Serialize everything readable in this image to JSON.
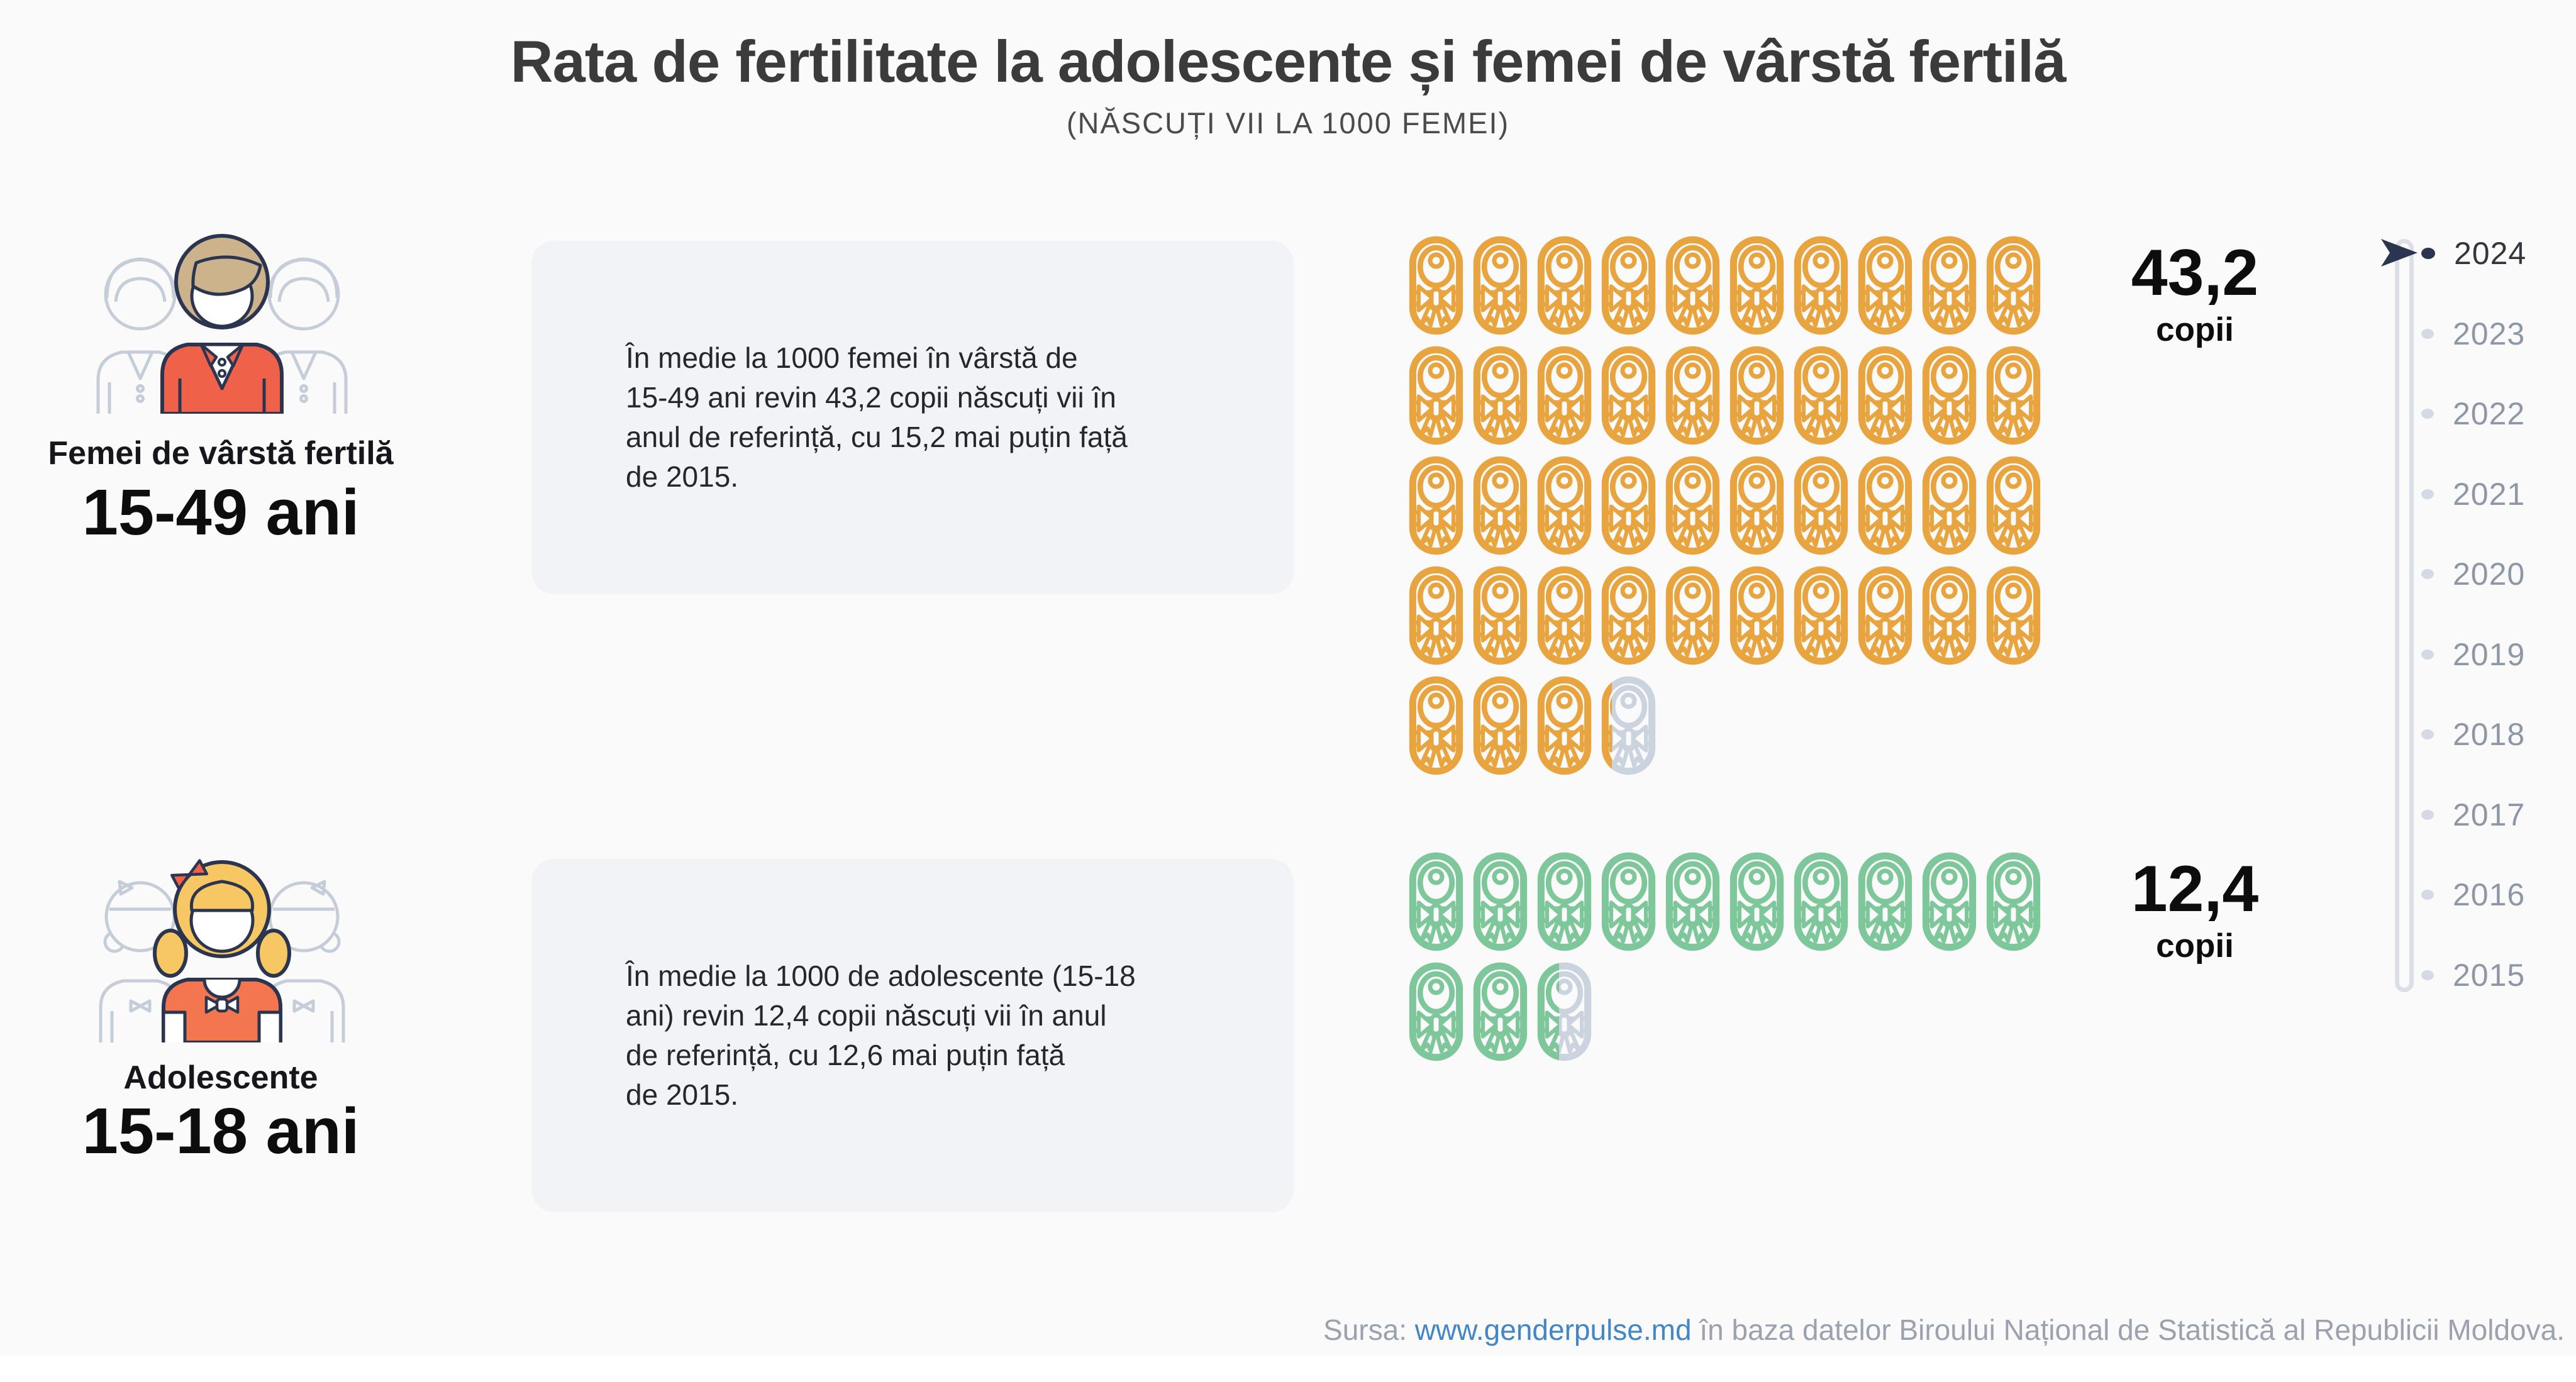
{
  "page": {
    "title": "Rata de fertilitate la adolescente și femei de vârstă fertilă",
    "subtitle": "(NĂSCUȚI VII LA 1000 FEMEI)"
  },
  "groups": [
    {
      "label": "Femei de vârstă fertilă",
      "age_range": "15-49 ani",
      "description_lines": [
        "În medie la 1000 femei în vârstă de",
        "15-49 ani revin 43,2 copii născuți vii în",
        "anul de referință, cu 15,2 mai puțin față",
        "de 2015."
      ],
      "value": 43.2,
      "value_label": "43,2",
      "value_unit": "copii",
      "icon_color": "#E8A43F",
      "icons_per_row": 10
    },
    {
      "label": "Adolescente",
      "age_range": "15-18 ani",
      "description_lines": [
        "În medie la 1000 de adolescente (15-18",
        "ani) revin 12,4 copii născuți vii în anul",
        "de referință, cu 12,6 mai puțin față",
        "de 2015."
      ],
      "value": 12.4,
      "value_label": "12,4",
      "value_unit": "copii",
      "icon_color": "#7EC79B",
      "icons_per_row": 10
    }
  ],
  "icons": {
    "symbol": "swaddled-baby-icon",
    "unit_per_icon": 1,
    "empty_color": "#CBD3DF"
  },
  "timeline": {
    "years": [
      "2024",
      "2023",
      "2022",
      "2021",
      "2020",
      "2019",
      "2018",
      "2017",
      "2016",
      "2015"
    ],
    "selected_year": "2024",
    "selected_text_color": "#33363C",
    "inactive_text_color": "#8E97A6",
    "selected_dot_color": "#2B3550",
    "inactive_dot_color": "#D3DAE3"
  },
  "footer": {
    "prefix": "Sursa: ",
    "link_text": "www.genderpulse.md",
    "suffix": " în baza datelor Biroului Național de Statistică al Republicii Moldova.",
    "text_color": "#9BA2AE",
    "link_color": "#4286C5"
  },
  "illustration_colors": {
    "outline_navy": "#2B3550",
    "outline_gray": "#C5CDD9",
    "jacket_orange": "#F0614A",
    "hair_tan": "#CDB38B",
    "hair_yellow": "#F6C763",
    "shirt_orange": "#F4764F",
    "background": "#FAFAFA"
  },
  "chart_data": {
    "type": "pictogram",
    "title": "Rata de fertilitate la adolescente și femei de vârstă fertilă",
    "subtitle": "(NĂSCUȚI VII LA 1000 FEMEI)",
    "unit_label": "copii născuți vii la 1000 femei",
    "icon_unit": 1,
    "icons_per_row": 10,
    "selected_year": "2024",
    "years": [
      "2024",
      "2023",
      "2022",
      "2021",
      "2020",
      "2019",
      "2018",
      "2017",
      "2016",
      "2015"
    ],
    "series": [
      {
        "name": "Femei de vârstă fertilă (15-49 ani)",
        "value": 43.2,
        "display": "43,2 copii",
        "note": "cu 15,2 mai puțin față de 2015",
        "color": "#E8A43F"
      },
      {
        "name": "Adolescente (15-18 ani)",
        "value": 12.4,
        "display": "12,4 copii",
        "note": "cu 12,6 mai puțin față de 2015",
        "color": "#7EC79B"
      }
    ],
    "legend_position": "none",
    "grid": false
  }
}
